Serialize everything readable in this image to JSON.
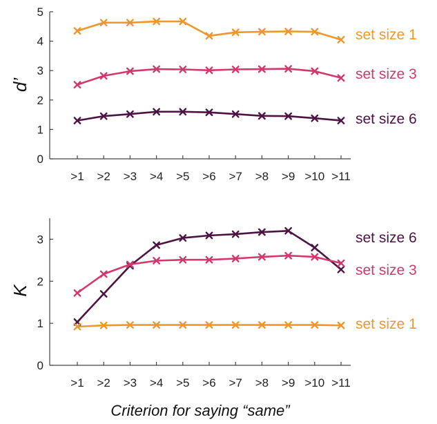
{
  "chart_data": [
    {
      "type": "line",
      "id": "top",
      "ylabel": "d’",
      "xlabel": "",
      "categories": [
        ">1",
        ">2",
        ">3",
        ">4",
        ">5",
        ">6",
        ">7",
        ">8",
        ">9",
        ">10",
        ">11"
      ],
      "ylim": [
        0,
        5
      ],
      "yticks": [
        "0",
        "1",
        "2",
        "3",
        "4",
        "5"
      ],
      "marker": "x",
      "series": [
        {
          "name": "set size 1",
          "color": "#f0962c",
          "values": [
            4.35,
            4.63,
            4.63,
            4.67,
            4.67,
            4.18,
            4.3,
            4.32,
            4.33,
            4.32,
            4.05
          ]
        },
        {
          "name": "set size 3",
          "color": "#d2386c",
          "values": [
            2.52,
            2.82,
            2.98,
            3.05,
            3.04,
            3.01,
            3.04,
            3.05,
            3.06,
            2.98,
            2.75
          ]
        },
        {
          "name": "set size 6",
          "color": "#4d1343",
          "values": [
            1.3,
            1.45,
            1.52,
            1.6,
            1.6,
            1.58,
            1.52,
            1.46,
            1.45,
            1.38,
            1.3
          ]
        }
      ]
    },
    {
      "type": "line",
      "id": "bottom",
      "ylabel": "K",
      "xlabel": "Criterion for saying “same”",
      "categories": [
        ">1",
        ">2",
        ">3",
        ">4",
        ">5",
        ">6",
        ">7",
        ">8",
        ">9",
        ">10",
        ">11"
      ],
      "ylim": [
        0,
        3.5
      ],
      "yticks": [
        "0",
        "1",
        "2",
        "3"
      ],
      "marker": "x",
      "series": [
        {
          "name": "set size 6",
          "color": "#4d1343",
          "values": [
            1.03,
            1.7,
            2.37,
            2.86,
            3.03,
            3.09,
            3.12,
            3.17,
            3.2,
            2.8,
            2.28
          ]
        },
        {
          "name": "set size 3",
          "color": "#d2386c",
          "values": [
            1.72,
            2.17,
            2.4,
            2.49,
            2.51,
            2.51,
            2.54,
            2.58,
            2.61,
            2.58,
            2.43
          ]
        },
        {
          "name": "set size 1",
          "color": "#f0962c",
          "values": [
            0.92,
            0.95,
            0.96,
            0.96,
            0.96,
            0.96,
            0.96,
            0.96,
            0.96,
            0.96,
            0.95
          ]
        }
      ]
    }
  ]
}
